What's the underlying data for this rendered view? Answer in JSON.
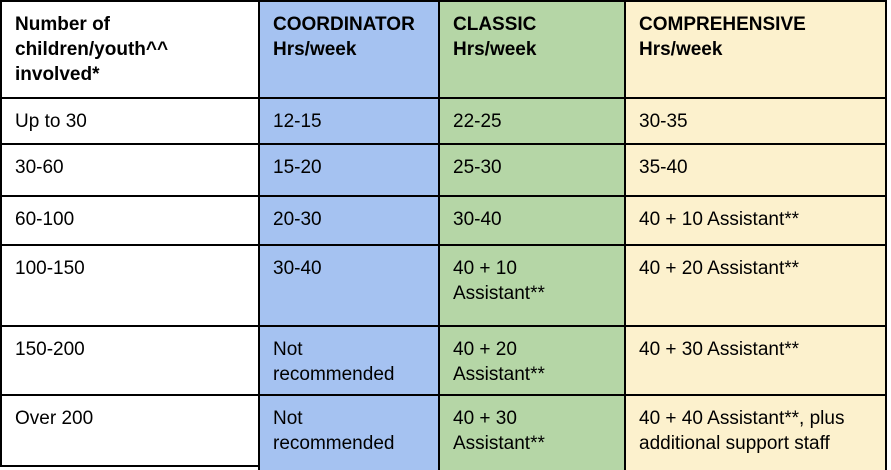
{
  "table": {
    "columns": [
      {
        "id": "children",
        "header": "Number of\nchildren/youth^^\ninvolved*",
        "bg": "#ffffff"
      },
      {
        "id": "coordinator",
        "header": "COORDINATOR\nHrs/week",
        "bg": "#a5c2f1"
      },
      {
        "id": "classic",
        "header": "CLASSIC\nHrs/week",
        "bg": "#b5d6a6"
      },
      {
        "id": "comprehensive",
        "header": "COMPREHENSIVE\nHrs/week",
        "bg": "#fcf1cd"
      }
    ],
    "rows": [
      {
        "range": "Up to 30",
        "coordinator": "12-15",
        "classic": "22-25",
        "comprehensive": "30-35"
      },
      {
        "range": "30-60",
        "coordinator": "15-20",
        "classic": "25-30",
        "comprehensive": "35-40"
      },
      {
        "range": "60-100",
        "coordinator": "20-30",
        "classic": "30-40",
        "comprehensive": "40 + 10 Assistant**"
      },
      {
        "range": "100-150",
        "coordinator": "30-40",
        "classic": "40 + 10\nAssistant**",
        "comprehensive": "40 + 20 Assistant**"
      },
      {
        "range": "150-200",
        "coordinator": "Not\nrecommended",
        "classic": "40 + 20\nAssistant**",
        "comprehensive": "40 + 30 Assistant**"
      },
      {
        "range": "Over 200",
        "coordinator": "Not\nrecommended",
        "classic": "40 + 30\nAssistant**",
        "comprehensive": "40 + 40 Assistant**, plus\nadditional support staff"
      }
    ],
    "colors": {
      "border": "#000000",
      "coordinator_bg": "#a5c2f1",
      "classic_bg": "#b5d6a6",
      "comprehensive_bg": "#fcf1cd",
      "text": "#000000"
    }
  }
}
